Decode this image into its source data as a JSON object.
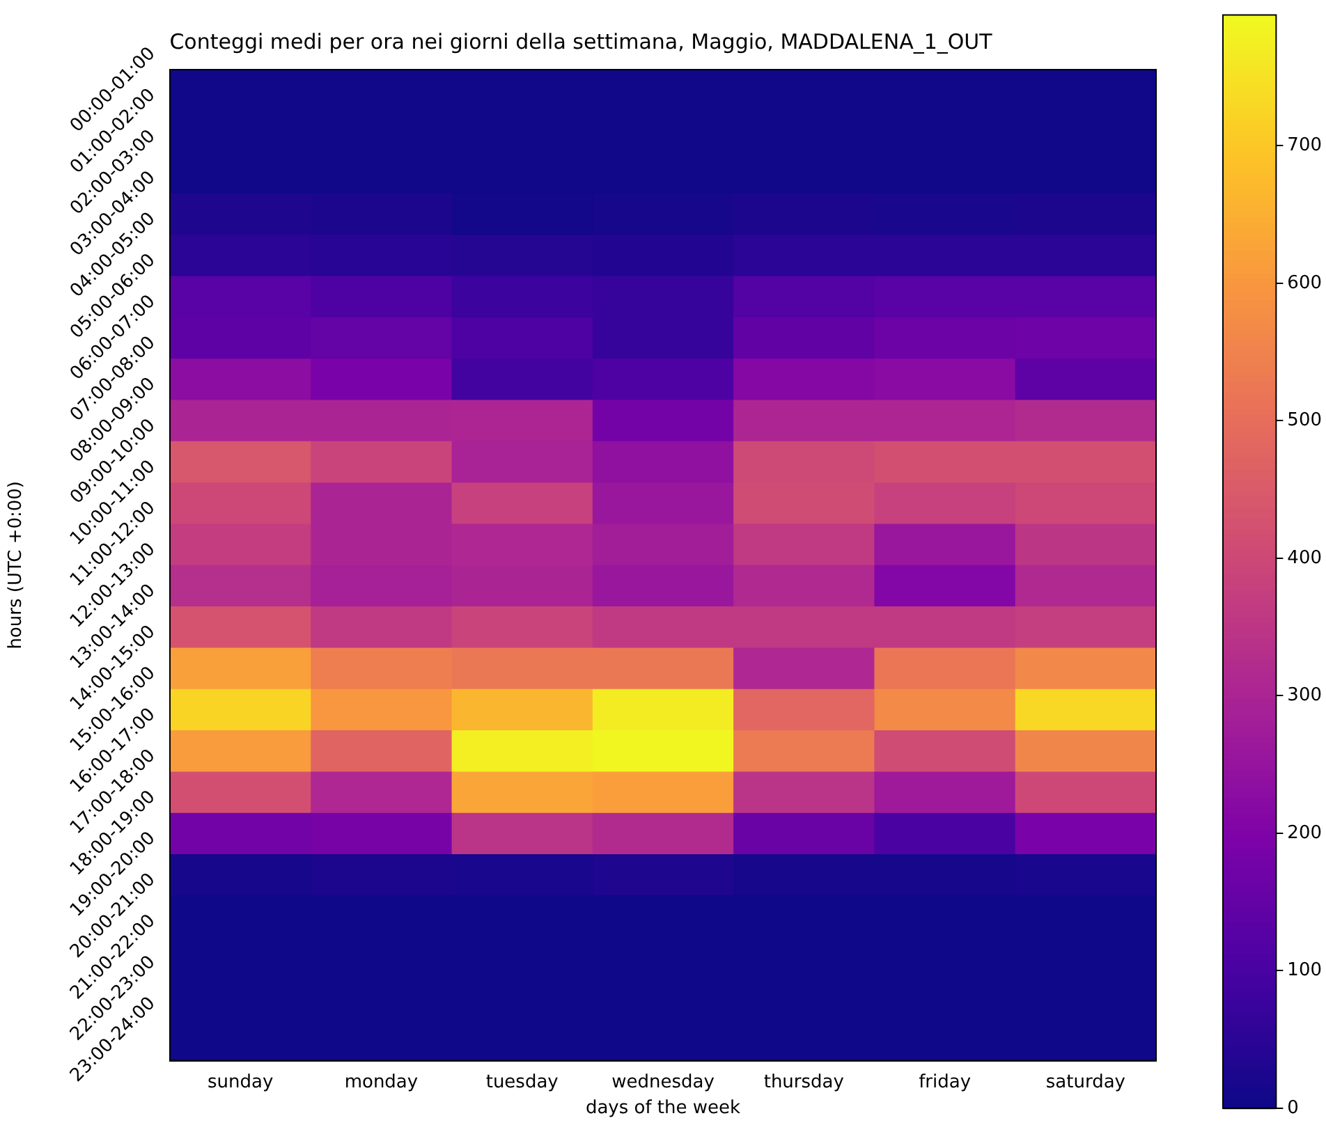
{
  "chart_data": {
    "type": "heatmap",
    "title": "Conteggi medi per ora nei giorni della settimana, Maggio, MADDALENA_1_OUT",
    "xlabel": "days of the week",
    "ylabel": "hours (UTC +0:00)",
    "categories": [
      "sunday",
      "monday",
      "tuesday",
      "wednesday",
      "thursday",
      "friday",
      "saturday"
    ],
    "y_categories": [
      "00:00-01:00",
      "01:00-02:00",
      "02:00-03:00",
      "03:00-04:00",
      "04:00-05:00",
      "05:00-06:00",
      "06:00-07:00",
      "07:00-08:00",
      "08:00-09:00",
      "09:00-10:00",
      "10:00-11:00",
      "11:00-12:00",
      "12:00-13:00",
      "13:00-14:00",
      "14:00-15:00",
      "15:00-16:00",
      "16:00-17:00",
      "17:00-18:00",
      "18:00-19:00",
      "19:00-20:00",
      "20:00-21:00",
      "21:00-22:00",
      "22:00-23:00",
      "23:00-24:00"
    ],
    "cells": [
      [
        5,
        5,
        5,
        5,
        5,
        5,
        5
      ],
      [
        5,
        5,
        5,
        5,
        5,
        5,
        5
      ],
      [
        5,
        5,
        5,
        5,
        5,
        5,
        5
      ],
      [
        30,
        25,
        10,
        15,
        25,
        20,
        25
      ],
      [
        50,
        45,
        40,
        35,
        50,
        50,
        50
      ],
      [
        130,
        110,
        80,
        70,
        120,
        130,
        130
      ],
      [
        140,
        150,
        110,
        70,
        145,
        165,
        170
      ],
      [
        230,
        190,
        90,
        110,
        215,
        225,
        140
      ],
      [
        300,
        300,
        305,
        180,
        305,
        305,
        320
      ],
      [
        440,
        390,
        295,
        240,
        405,
        420,
        420
      ],
      [
        400,
        300,
        380,
        260,
        410,
        380,
        400
      ],
      [
        370,
        300,
        310,
        280,
        360,
        260,
        350
      ],
      [
        330,
        290,
        300,
        260,
        315,
        210,
        315
      ],
      [
        430,
        360,
        390,
        360,
        360,
        360,
        375
      ],
      [
        620,
        540,
        525,
        525,
        310,
        520,
        565
      ],
      [
        725,
        600,
        665,
        770,
        480,
        570,
        730
      ],
      [
        610,
        475,
        775,
        790,
        530,
        410,
        560
      ],
      [
        420,
        310,
        630,
        615,
        345,
        270,
        400
      ],
      [
        175,
        185,
        345,
        320,
        160,
        105,
        190
      ],
      [
        15,
        25,
        20,
        30,
        15,
        15,
        20
      ],
      [
        3,
        3,
        3,
        3,
        3,
        3,
        3
      ],
      [
        3,
        3,
        3,
        3,
        3,
        3,
        3
      ],
      [
        3,
        3,
        3,
        3,
        3,
        3,
        3
      ],
      [
        3,
        3,
        3,
        3,
        3,
        3,
        3
      ]
    ],
    "clim": [
      0,
      795
    ],
    "cticks": [
      0,
      100,
      200,
      300,
      400,
      500,
      600,
      700
    ],
    "grid": false,
    "legend": false
  }
}
